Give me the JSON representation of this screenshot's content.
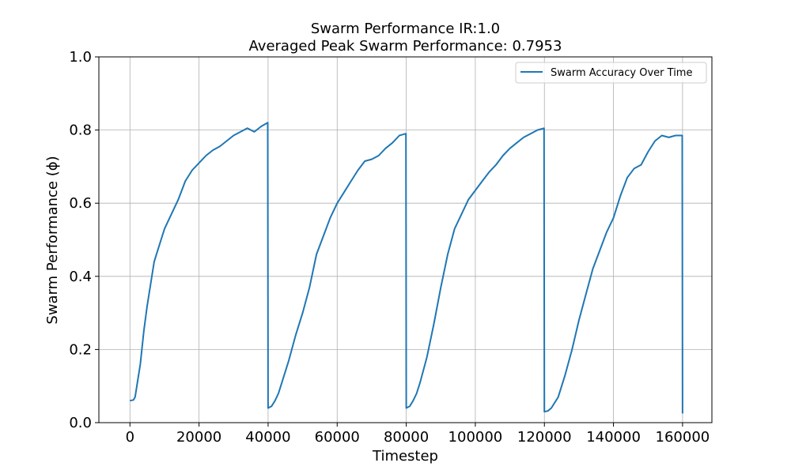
{
  "chart_data": {
    "type": "line",
    "title_line1": "Swarm Performance IR:1.0",
    "title_line2": "Averaged Peak Swarm Performance: 0.7953",
    "xlabel": "Timestep",
    "ylabel": "Swarm Performance (ϕ)",
    "xlim": [
      -9000,
      168500
    ],
    "ylim": [
      0,
      1.0
    ],
    "x_ticks": [
      0,
      20000,
      40000,
      60000,
      80000,
      100000,
      120000,
      140000,
      160000
    ],
    "x_tick_labels": [
      "0",
      "20000",
      "40000",
      "60000",
      "80000",
      "100000",
      "120000",
      "140000",
      "160000"
    ],
    "y_ticks": [
      0.0,
      0.2,
      0.4,
      0.6,
      0.8,
      1.0
    ],
    "y_tick_labels": [
      "0.0",
      "0.2",
      "0.4",
      "0.6",
      "0.8",
      "1.0"
    ],
    "grid": true,
    "legend_position": "top-right",
    "series": [
      {
        "name": "Swarm Accuracy Over Time",
        "color": "#1f77b4",
        "x": [
          0,
          1000,
          1500,
          2000,
          3000,
          4000,
          5000,
          6000,
          7000,
          8000,
          9000,
          10000,
          12000,
          14000,
          16000,
          18000,
          20000,
          22000,
          24000,
          26000,
          28000,
          30000,
          32000,
          34000,
          36000,
          38000,
          39900,
          40000,
          41000,
          42000,
          43000,
          44000,
          46000,
          48000,
          50000,
          52000,
          54000,
          56000,
          58000,
          60000,
          62000,
          64000,
          66000,
          68000,
          70000,
          72000,
          74000,
          76000,
          78000,
          79900,
          80000,
          81000,
          82000,
          83000,
          84000,
          86000,
          88000,
          90000,
          92000,
          94000,
          96000,
          98000,
          100000,
          102000,
          104000,
          106000,
          108000,
          110000,
          112000,
          114000,
          116000,
          118000,
          119900,
          120000,
          121000,
          122000,
          124000,
          126000,
          128000,
          130000,
          132000,
          134000,
          136000,
          138000,
          140000,
          142000,
          144000,
          146000,
          148000,
          150000,
          152000,
          154000,
          156000,
          158000,
          159900,
          160000
        ],
        "y": [
          0.06,
          0.062,
          0.07,
          0.1,
          0.16,
          0.25,
          0.32,
          0.38,
          0.44,
          0.47,
          0.5,
          0.53,
          0.57,
          0.61,
          0.66,
          0.69,
          0.71,
          0.73,
          0.745,
          0.755,
          0.77,
          0.785,
          0.795,
          0.805,
          0.795,
          0.81,
          0.82,
          0.04,
          0.045,
          0.06,
          0.08,
          0.11,
          0.17,
          0.24,
          0.3,
          0.37,
          0.46,
          0.51,
          0.56,
          0.6,
          0.63,
          0.66,
          0.69,
          0.715,
          0.72,
          0.73,
          0.75,
          0.765,
          0.785,
          0.79,
          0.04,
          0.045,
          0.06,
          0.08,
          0.11,
          0.18,
          0.27,
          0.37,
          0.46,
          0.53,
          0.57,
          0.61,
          0.635,
          0.66,
          0.685,
          0.705,
          0.73,
          0.75,
          0.765,
          0.78,
          0.79,
          0.8,
          0.805,
          0.03,
          0.032,
          0.04,
          0.07,
          0.13,
          0.2,
          0.28,
          0.35,
          0.42,
          0.47,
          0.52,
          0.56,
          0.62,
          0.67,
          0.695,
          0.705,
          0.74,
          0.77,
          0.785,
          0.78,
          0.785,
          0.785,
          0.025
        ]
      }
    ]
  }
}
